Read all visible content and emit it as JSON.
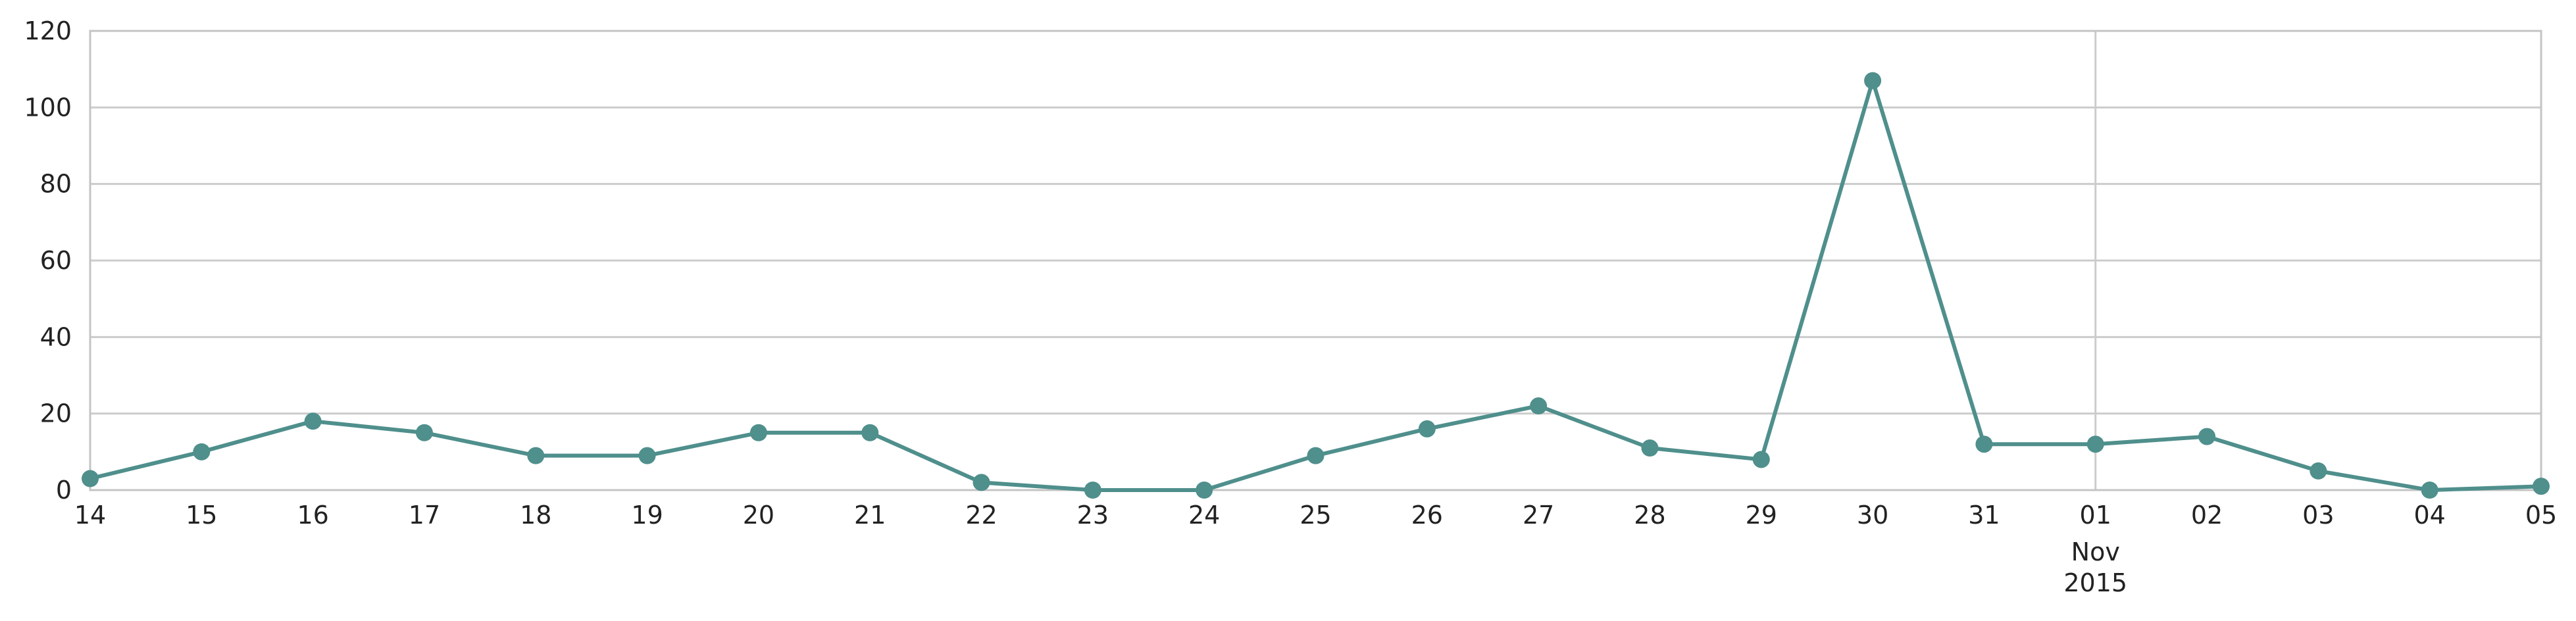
{
  "chart_data": {
    "type": "line",
    "title": "",
    "xlabel": "",
    "ylabel": "",
    "x": [
      "2015-10-14",
      "2015-10-15",
      "2015-10-16",
      "2015-10-17",
      "2015-10-18",
      "2015-10-19",
      "2015-10-20",
      "2015-10-21",
      "2015-10-22",
      "2015-10-23",
      "2015-10-24",
      "2015-10-25",
      "2015-10-26",
      "2015-10-27",
      "2015-10-28",
      "2015-10-29",
      "2015-10-30",
      "2015-10-31",
      "2015-11-01",
      "2015-11-02",
      "2015-11-03",
      "2015-11-04",
      "2015-11-05"
    ],
    "x_tick_labels": [
      "14",
      "15",
      "16",
      "17",
      "18",
      "19",
      "20",
      "21",
      "22",
      "23",
      "24",
      "25",
      "26",
      "27",
      "28",
      "29",
      "30",
      "31",
      "01",
      "02",
      "03",
      "04",
      "05"
    ],
    "x_secondary_label": {
      "lines": [
        "Nov",
        "2015"
      ],
      "under": "01"
    },
    "series": [
      {
        "values": [
          3,
          10,
          18,
          15,
          9,
          9,
          15,
          15,
          2,
          0,
          0,
          9,
          16,
          22,
          11,
          8,
          107,
          12,
          12,
          14,
          5,
          0,
          1
        ],
        "color": "#4f8f8c"
      }
    ],
    "ylim": [
      0,
      120
    ],
    "y_ticks": [
      0,
      20,
      40,
      60,
      80,
      100,
      120
    ],
    "grid": {
      "horizontal": true,
      "vertical_at": [
        "2015-11-01"
      ]
    },
    "legend": "none"
  }
}
